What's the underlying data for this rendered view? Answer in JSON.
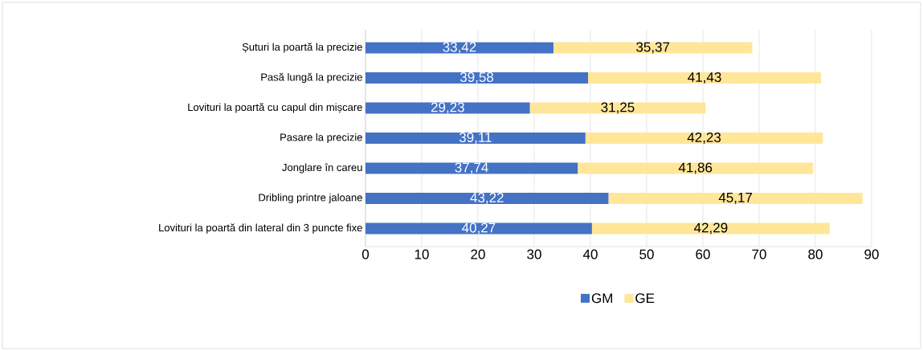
{
  "chart_data": {
    "type": "bar",
    "orientation": "horizontal",
    "stacked": true,
    "categories": [
      "Șuturi la poartă la precizie",
      "Pasă lungă la precizie",
      "Lovituri la poartă cu capul din mișcare",
      "Pasare la precizie",
      "Jonglare în careu",
      "Dribling printre jaloane",
      "Lovituri la poartă din lateral din 3 puncte fixe"
    ],
    "series": [
      {
        "name": "GM",
        "color": "#4472c4",
        "values": [
          33.42,
          39.58,
          29.23,
          39.11,
          37.74,
          43.22,
          40.27
        ],
        "value_labels": [
          "33,42",
          "39,58",
          "29,23",
          "39,11",
          "37,74",
          "43,22",
          "40,27"
        ]
      },
      {
        "name": "GE",
        "color": "#ffe699",
        "values": [
          35.37,
          41.43,
          31.25,
          42.23,
          41.86,
          45.17,
          42.29
        ],
        "value_labels": [
          "35,37",
          "41,43",
          "31,25",
          "42,23",
          "41,86",
          "45,17",
          "42,29"
        ]
      }
    ],
    "xlim": [
      0,
      90
    ],
    "xticks": [
      0,
      10,
      20,
      30,
      40,
      50,
      60,
      70,
      80,
      90
    ],
    "grid": "x",
    "legend": "bottom"
  }
}
